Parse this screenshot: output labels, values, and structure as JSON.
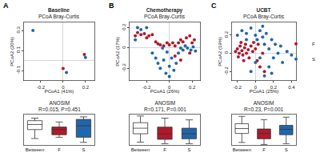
{
  "chart_data": [
    {
      "type": "scatter",
      "panel_label": "A",
      "title": "Baseline",
      "subtitle": "PCoA Bray-Curtis",
      "x_label": "PCoA1 (41%)",
      "y_label": "PCoA2 (20%)",
      "xlim": [
        -0.35,
        0.28
      ],
      "xticks": [
        -0.2,
        0,
        0.2
      ],
      "ylim": [
        -0.2,
        0.38
      ],
      "yticks": [
        -0.1,
        0.1,
        0.3
      ],
      "marker": "circle",
      "series": [
        {
          "name": "F",
          "color": "#b2182b",
          "x": [
            0.0,
            0.19
          ],
          "y": [
            -0.08,
            0.06
          ]
        },
        {
          "name": "S",
          "color": "#2166ac",
          "x": [
            -0.27,
            0.03,
            0.2
          ],
          "y": [
            0.3,
            -0.12,
            0.03
          ]
        }
      ]
    },
    {
      "type": "scatter",
      "panel_label": "B",
      "title": "Chemotherapy",
      "subtitle": "PCoA Bray-Curtis",
      "x_label": "PCoA1 (26%)",
      "y_label": "PCoA2 (17%)",
      "xlim": [
        -0.35,
        0.27
      ],
      "xticks": [
        -0.2,
        0,
        0.2
      ],
      "ylim": [
        -0.32,
        0.25
      ],
      "yticks": [
        -0.2,
        0,
        0.2
      ],
      "marker": "circle",
      "series": [
        {
          "name": "F",
          "color": "#b2182b",
          "x": [
            -0.3,
            -0.28,
            -0.25,
            -0.22,
            -0.2,
            -0.18,
            -0.15,
            -0.12,
            -0.1,
            -0.08,
            -0.05,
            -0.02,
            0,
            0.03,
            0.05,
            0.08,
            0.1,
            0.12,
            0.15,
            0.18,
            0.2,
            0.22,
            0.05,
            0.1,
            0.18
          ],
          "y": [
            0.12,
            0.15,
            0.13,
            0.14,
            0.1,
            0.12,
            0.13,
            0.06,
            0.04,
            0.03,
            0.02,
            0.05,
            0.03,
            0.05,
            0.02,
            0.05,
            0.08,
            0.06,
            0.1,
            0.12,
            0.05,
            0.08,
            -0.08,
            -0.12,
            -0.05
          ]
        },
        {
          "name": "S",
          "color": "#2166ac",
          "x": [
            -0.28,
            -0.25,
            -0.2,
            -0.3,
            -0.15,
            -0.12,
            -0.1,
            -0.08,
            -0.05,
            -0.03,
            0,
            0.02,
            0.04,
            0.06,
            0.08,
            0.1,
            0.12,
            0.14,
            0.16,
            0.19,
            0.21,
            0.23,
            -0.06,
            -0.02,
            0.0
          ],
          "y": [
            0.2,
            0.18,
            0.2,
            0.08,
            -0.05,
            -0.1,
            -0.15,
            -0.2,
            -0.12,
            -0.25,
            -0.18,
            -0.1,
            -0.22,
            -0.15,
            -0.05,
            0.0,
            -0.02,
            0.02,
            0.0,
            -0.02,
            0.01,
            -0.03,
            0.0,
            -0.04,
            -0.28
          ]
        }
      ]
    },
    {
      "type": "scatter",
      "panel_label": "C",
      "title": "UCBT",
      "subtitle": "PCoA Bray-Curtis",
      "x_label": "PCoA1 (25%)",
      "y_label": "PCoA2 (19%)",
      "xlim": [
        -0.26,
        0.45
      ],
      "xticks": [
        -0.2,
        0,
        0.2,
        0.4
      ],
      "ylim": [
        -0.3,
        0.34
      ],
      "yticks": [
        -0.2,
        0,
        0.2
      ],
      "marker": "circle",
      "legend": "right",
      "series": [
        {
          "name": "F",
          "color": "#b2182b",
          "x": [
            -0.22,
            -0.2,
            -0.18,
            -0.17,
            -0.15,
            -0.14,
            -0.12,
            -0.11,
            -0.1,
            -0.08,
            -0.07,
            -0.05,
            -0.03,
            -0.02,
            0,
            0.02,
            0.03,
            0.05,
            0.08,
            -0.16,
            -0.13,
            0.1,
            -0.19
          ],
          "y": [
            0.02,
            0.05,
            0.0,
            0.08,
            0.03,
            -0.02,
            0.06,
            0.1,
            0.0,
            0.04,
            -0.05,
            0.08,
            0.02,
            0.12,
            0.05,
            -0.08,
            0.1,
            -0.15,
            0.0,
            0.12,
            -0.08,
            -0.2,
            -0.04
          ]
        },
        {
          "name": "S",
          "color": "#2166ac",
          "x": [
            -0.2,
            -0.15,
            -0.1,
            -0.05,
            0,
            0.02,
            0.05,
            0.08,
            0.1,
            0.12,
            0.15,
            0.18,
            0.2,
            0.22,
            0.25,
            0.28,
            0.3,
            0.35,
            0.4,
            0.15,
            0.1,
            0.05,
            0.0,
            -0.05,
            0.08,
            0.18,
            -0.1
          ],
          "y": [
            0.2,
            0.25,
            0.22,
            0.28,
            0.2,
            0.15,
            0.25,
            0.18,
            0.1,
            0.22,
            0.05,
            0.15,
            -0.05,
            0.1,
            0.0,
            0.08,
            -0.1,
            0.02,
            -0.02,
            -0.15,
            -0.25,
            -0.05,
            -0.1,
            -0.2,
            0.3,
            -0.22,
            0.15
          ]
        }
      ]
    },
    {
      "type": "box",
      "title": "ANOSIM",
      "subtitle": "R=0.015, P=0.451",
      "categories": [
        "Between",
        "F",
        "S"
      ],
      "colors": [
        "#ffffff",
        "#b2182b",
        "#2166ac"
      ],
      "lower": [
        5,
        6,
        2
      ],
      "q1": [
        12,
        8,
        6
      ],
      "median": [
        16,
        12,
        15
      ],
      "q3": [
        19,
        14,
        20
      ],
      "upper": [
        21,
        18,
        22
      ],
      "ylim": [
        0,
        24
      ],
      "tick_labels": "x"
    },
    {
      "type": "box",
      "title": "ANOSIM",
      "subtitle": "R=0.171, P=0.001",
      "categories": [
        "Between",
        "F",
        "S"
      ],
      "colors": [
        "#ffffff",
        "#b2182b",
        "#2166ac"
      ],
      "lower": [
        500,
        200,
        200
      ],
      "q1": [
        2000,
        1000,
        1100
      ],
      "median": [
        3000,
        2000,
        2000
      ],
      "q3": [
        4000,
        3200,
        3000
      ],
      "upper": [
        5200,
        4800,
        4500
      ],
      "ylim": [
        0,
        5500
      ],
      "tick_labels": "x"
    },
    {
      "type": "box",
      "title": "ANOSIM",
      "subtitle": "R=0.23, P=0.001",
      "categories": [
        "Between",
        "F",
        "S"
      ],
      "colors": [
        "#ffffff",
        "#b2182b",
        "#2166ac"
      ],
      "lower": [
        600,
        100,
        300
      ],
      "q1": [
        2800,
        1500,
        2500
      ],
      "median": [
        4000,
        2800,
        3800
      ],
      "q3": [
        5200,
        3900,
        4800
      ],
      "upper": [
        7000,
        6200,
        6800
      ],
      "ylim": [
        0,
        7500
      ],
      "tick_labels": "x"
    }
  ]
}
